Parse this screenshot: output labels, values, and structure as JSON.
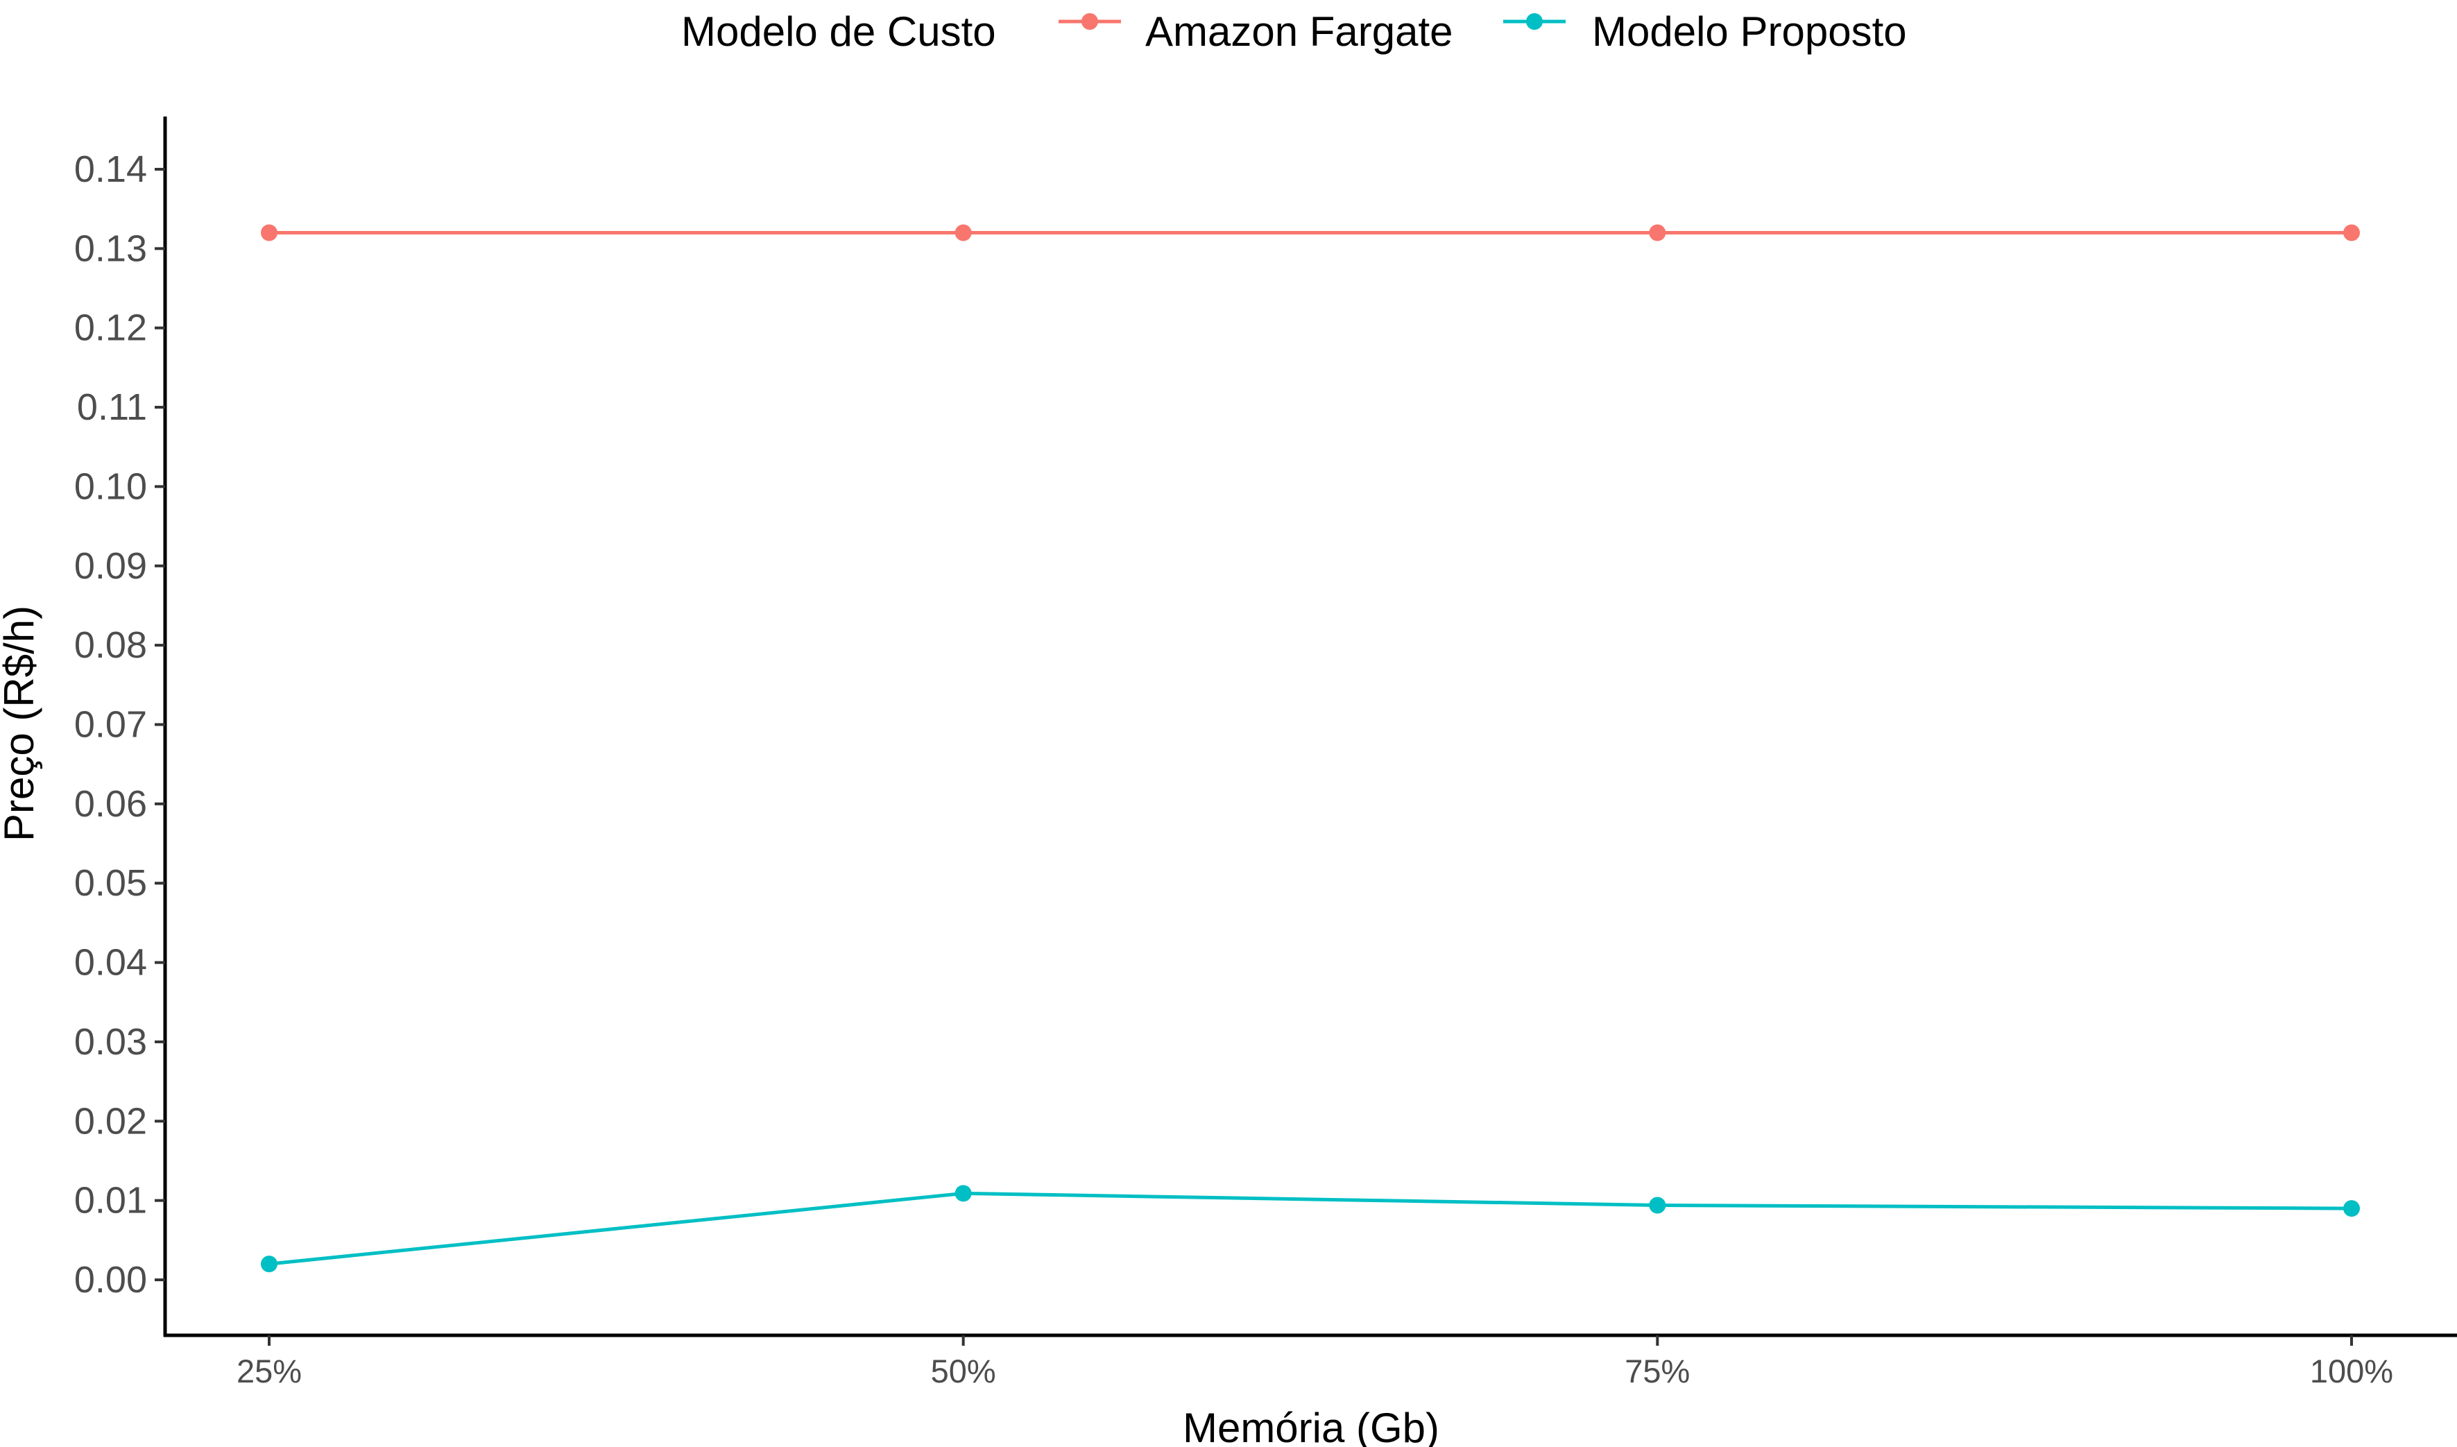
{
  "chart_data": {
    "type": "line",
    "xlabel": "Memória (Gb)",
    "ylabel": "Preço (R$/h)",
    "categories": [
      "25%",
      "50%",
      "75%",
      "100%"
    ],
    "ylim": [
      -0.0068,
      0.146
    ],
    "yticks": [
      "0.00",
      "0.01",
      "0.02",
      "0.03",
      "0.04",
      "0.05",
      "0.06",
      "0.07",
      "0.08",
      "0.09",
      "0.10",
      "0.11",
      "0.12",
      "0.13",
      "0.14"
    ],
    "grid": false,
    "legend": {
      "title": "Modelo de Custo",
      "position": "top"
    },
    "series": [
      {
        "name": "Amazon Fargate",
        "color": "#F8766D",
        "values": [
          0.132,
          0.132,
          0.132,
          0.132
        ]
      },
      {
        "name": "Modelo Proposto",
        "color": "#00BFC4",
        "values": [
          0.002,
          0.0109,
          0.0094,
          0.009
        ]
      }
    ]
  }
}
